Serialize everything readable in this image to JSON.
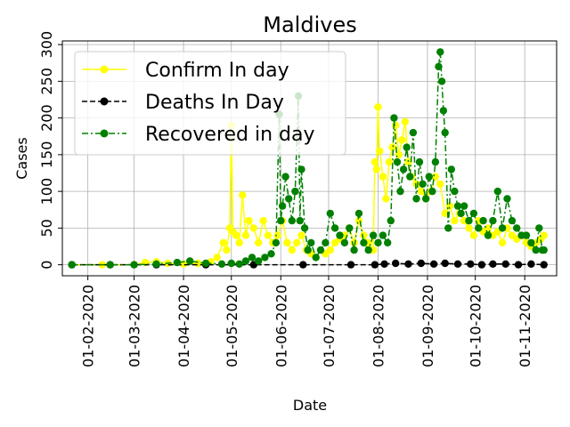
{
  "chart_data": {
    "type": "line",
    "title": "Maldives",
    "xlabel": "Date",
    "ylabel": "Cases",
    "x_range": [
      "2020-01-16",
      "2020-11-21"
    ],
    "ylim": [
      -15,
      305
    ],
    "grid": true,
    "legend_position": "upper-left",
    "x_ticks": [
      {
        "date": "2020-02-01",
        "label": "01-02-2020"
      },
      {
        "date": "2020-03-01",
        "label": "01-03-2020"
      },
      {
        "date": "2020-04-01",
        "label": "01-04-2020"
      },
      {
        "date": "2020-05-01",
        "label": "01-05-2020"
      },
      {
        "date": "2020-06-01",
        "label": "01-06-2020"
      },
      {
        "date": "2020-07-01",
        "label": "01-07-2020"
      },
      {
        "date": "2020-08-01",
        "label": "01-08-2020"
      },
      {
        "date": "2020-09-01",
        "label": "01-09-2020"
      },
      {
        "date": "2020-10-01",
        "label": "01-10-2020"
      },
      {
        "date": "2020-11-01",
        "label": "01-11-2020"
      }
    ],
    "y_ticks": [
      0,
      50,
      100,
      150,
      200,
      250,
      300
    ],
    "series": [
      {
        "name": "Confirm In day",
        "color": "#ffff00",
        "linestyle": "solid",
        "points": [
          [
            "2020-01-22",
            0
          ],
          [
            "2020-02-10",
            0
          ],
          [
            "2020-03-01",
            0
          ],
          [
            "2020-03-08",
            3
          ],
          [
            "2020-03-15",
            4
          ],
          [
            "2020-03-22",
            2
          ],
          [
            "2020-04-01",
            1
          ],
          [
            "2020-04-10",
            2
          ],
          [
            "2020-04-18",
            4
          ],
          [
            "2020-04-22",
            10
          ],
          [
            "2020-04-26",
            30
          ],
          [
            "2020-04-28",
            20
          ],
          [
            "2020-04-30",
            50
          ],
          [
            "2020-05-01",
            190
          ],
          [
            "2020-05-02",
            45
          ],
          [
            "2020-05-04",
            40
          ],
          [
            "2020-05-06",
            30
          ],
          [
            "2020-05-08",
            95
          ],
          [
            "2020-05-10",
            40
          ],
          [
            "2020-05-12",
            60
          ],
          [
            "2020-05-15",
            50
          ],
          [
            "2020-05-18",
            30
          ],
          [
            "2020-05-21",
            60
          ],
          [
            "2020-05-24",
            40
          ],
          [
            "2020-05-27",
            30
          ],
          [
            "2020-05-30",
            40
          ],
          [
            "2020-06-02",
            60
          ],
          [
            "2020-06-05",
            30
          ],
          [
            "2020-06-08",
            20
          ],
          [
            "2020-06-11",
            30
          ],
          [
            "2020-06-14",
            40
          ],
          [
            "2020-06-17",
            20
          ],
          [
            "2020-06-20",
            15
          ],
          [
            "2020-06-23",
            10
          ],
          [
            "2020-06-26",
            20
          ],
          [
            "2020-06-29",
            15
          ],
          [
            "2020-07-02",
            20
          ],
          [
            "2020-07-05",
            30
          ],
          [
            "2020-07-08",
            35
          ],
          [
            "2020-07-11",
            40
          ],
          [
            "2020-07-14",
            50
          ],
          [
            "2020-07-17",
            30
          ],
          [
            "2020-07-20",
            60
          ],
          [
            "2020-07-23",
            40
          ],
          [
            "2020-07-26",
            30
          ],
          [
            "2020-07-29",
            20
          ],
          [
            "2020-07-30",
            140
          ],
          [
            "2020-07-31",
            130
          ],
          [
            "2020-08-01",
            215
          ],
          [
            "2020-08-02",
            155
          ],
          [
            "2020-08-04",
            120
          ],
          [
            "2020-08-06",
            90
          ],
          [
            "2020-08-08",
            140
          ],
          [
            "2020-08-10",
            160
          ],
          [
            "2020-08-12",
            190
          ],
          [
            "2020-08-14",
            150
          ],
          [
            "2020-08-16",
            170
          ],
          [
            "2020-08-18",
            195
          ],
          [
            "2020-08-20",
            140
          ],
          [
            "2020-08-22",
            120
          ],
          [
            "2020-08-25",
            110
          ],
          [
            "2020-08-28",
            100
          ],
          [
            "2020-08-31",
            90
          ],
          [
            "2020-09-03",
            100
          ],
          [
            "2020-09-06",
            120
          ],
          [
            "2020-09-09",
            110
          ],
          [
            "2020-09-12",
            70
          ],
          [
            "2020-09-15",
            80
          ],
          [
            "2020-09-18",
            60
          ],
          [
            "2020-09-21",
            70
          ],
          [
            "2020-09-24",
            60
          ],
          [
            "2020-09-27",
            50
          ],
          [
            "2020-09-30",
            40
          ],
          [
            "2020-10-03",
            60
          ],
          [
            "2020-10-06",
            45
          ],
          [
            "2020-10-09",
            50
          ],
          [
            "2020-10-12",
            40
          ],
          [
            "2020-10-15",
            45
          ],
          [
            "2020-10-18",
            30
          ],
          [
            "2020-10-21",
            50
          ],
          [
            "2020-10-24",
            40
          ],
          [
            "2020-10-27",
            35
          ],
          [
            "2020-10-30",
            40
          ],
          [
            "2020-11-02",
            30
          ],
          [
            "2020-11-05",
            25
          ],
          [
            "2020-11-08",
            30
          ],
          [
            "2020-11-11",
            35
          ],
          [
            "2020-11-13",
            40
          ]
        ]
      },
      {
        "name": "Deaths In Day",
        "color": "#000000",
        "linestyle": "dashed",
        "points": [
          [
            "2020-01-22",
            0
          ],
          [
            "2020-02-15",
            0
          ],
          [
            "2020-03-15",
            0
          ],
          [
            "2020-04-15",
            0
          ],
          [
            "2020-05-15",
            0
          ],
          [
            "2020-06-15",
            0
          ],
          [
            "2020-07-15",
            0
          ],
          [
            "2020-07-30",
            0
          ],
          [
            "2020-08-05",
            1
          ],
          [
            "2020-08-12",
            2
          ],
          [
            "2020-08-20",
            1
          ],
          [
            "2020-08-28",
            2
          ],
          [
            "2020-09-05",
            1
          ],
          [
            "2020-09-12",
            2
          ],
          [
            "2020-09-20",
            1
          ],
          [
            "2020-09-28",
            1
          ],
          [
            "2020-10-05",
            0
          ],
          [
            "2020-10-12",
            1
          ],
          [
            "2020-10-20",
            1
          ],
          [
            "2020-10-28",
            0
          ],
          [
            "2020-11-05",
            1
          ],
          [
            "2020-11-13",
            0
          ]
        ]
      },
      {
        "name": "Recovered in day",
        "color": "#008000",
        "linestyle": "dashdot",
        "points": [
          [
            "2020-01-22",
            0
          ],
          [
            "2020-02-15",
            0
          ],
          [
            "2020-03-01",
            0
          ],
          [
            "2020-03-15",
            1
          ],
          [
            "2020-03-28",
            3
          ],
          [
            "2020-04-05",
            5
          ],
          [
            "2020-04-15",
            2
          ],
          [
            "2020-04-25",
            1
          ],
          [
            "2020-05-01",
            2
          ],
          [
            "2020-05-06",
            1
          ],
          [
            "2020-05-10",
            5
          ],
          [
            "2020-05-14",
            10
          ],
          [
            "2020-05-18",
            5
          ],
          [
            "2020-05-22",
            10
          ],
          [
            "2020-05-26",
            15
          ],
          [
            "2020-05-29",
            30
          ],
          [
            "2020-05-31",
            205
          ],
          [
            "2020-06-01",
            60
          ],
          [
            "2020-06-02",
            80
          ],
          [
            "2020-06-04",
            120
          ],
          [
            "2020-06-06",
            90
          ],
          [
            "2020-06-08",
            60
          ],
          [
            "2020-06-10",
            100
          ],
          [
            "2020-06-12",
            230
          ],
          [
            "2020-06-13",
            60
          ],
          [
            "2020-06-14",
            130
          ],
          [
            "2020-06-16",
            50
          ],
          [
            "2020-06-18",
            20
          ],
          [
            "2020-06-20",
            30
          ],
          [
            "2020-06-23",
            10
          ],
          [
            "2020-06-26",
            20
          ],
          [
            "2020-06-29",
            30
          ],
          [
            "2020-07-02",
            70
          ],
          [
            "2020-07-05",
            50
          ],
          [
            "2020-07-08",
            40
          ],
          [
            "2020-07-11",
            30
          ],
          [
            "2020-07-14",
            50
          ],
          [
            "2020-07-17",
            20
          ],
          [
            "2020-07-20",
            70
          ],
          [
            "2020-07-23",
            30
          ],
          [
            "2020-07-26",
            20
          ],
          [
            "2020-07-29",
            40
          ],
          [
            "2020-08-01",
            30
          ],
          [
            "2020-08-04",
            40
          ],
          [
            "2020-08-07",
            30
          ],
          [
            "2020-08-09",
            60
          ],
          [
            "2020-08-11",
            200
          ],
          [
            "2020-08-13",
            140
          ],
          [
            "2020-08-15",
            100
          ],
          [
            "2020-08-17",
            130
          ],
          [
            "2020-08-19",
            160
          ],
          [
            "2020-08-21",
            120
          ],
          [
            "2020-08-23",
            180
          ],
          [
            "2020-08-25",
            90
          ],
          [
            "2020-08-27",
            140
          ],
          [
            "2020-08-29",
            110
          ],
          [
            "2020-08-31",
            90
          ],
          [
            "2020-09-02",
            120
          ],
          [
            "2020-09-04",
            100
          ],
          [
            "2020-09-06",
            140
          ],
          [
            "2020-09-08",
            270
          ],
          [
            "2020-09-09",
            290
          ],
          [
            "2020-09-10",
            250
          ],
          [
            "2020-09-11",
            210
          ],
          [
            "2020-09-12",
            180
          ],
          [
            "2020-09-14",
            50
          ],
          [
            "2020-09-16",
            130
          ],
          [
            "2020-09-18",
            100
          ],
          [
            "2020-09-20",
            80
          ],
          [
            "2020-09-22",
            70
          ],
          [
            "2020-09-24",
            80
          ],
          [
            "2020-09-27",
            60
          ],
          [
            "2020-09-30",
            70
          ],
          [
            "2020-10-03",
            50
          ],
          [
            "2020-10-06",
            60
          ],
          [
            "2020-10-09",
            40
          ],
          [
            "2020-10-12",
            60
          ],
          [
            "2020-10-15",
            100
          ],
          [
            "2020-10-18",
            50
          ],
          [
            "2020-10-21",
            90
          ],
          [
            "2020-10-24",
            60
          ],
          [
            "2020-10-27",
            50
          ],
          [
            "2020-10-30",
            40
          ],
          [
            "2020-11-02",
            40
          ],
          [
            "2020-11-05",
            30
          ],
          [
            "2020-11-08",
            20
          ],
          [
            "2020-11-10",
            50
          ],
          [
            "2020-11-12",
            20
          ],
          [
            "2020-11-13",
            20
          ]
        ]
      }
    ]
  }
}
